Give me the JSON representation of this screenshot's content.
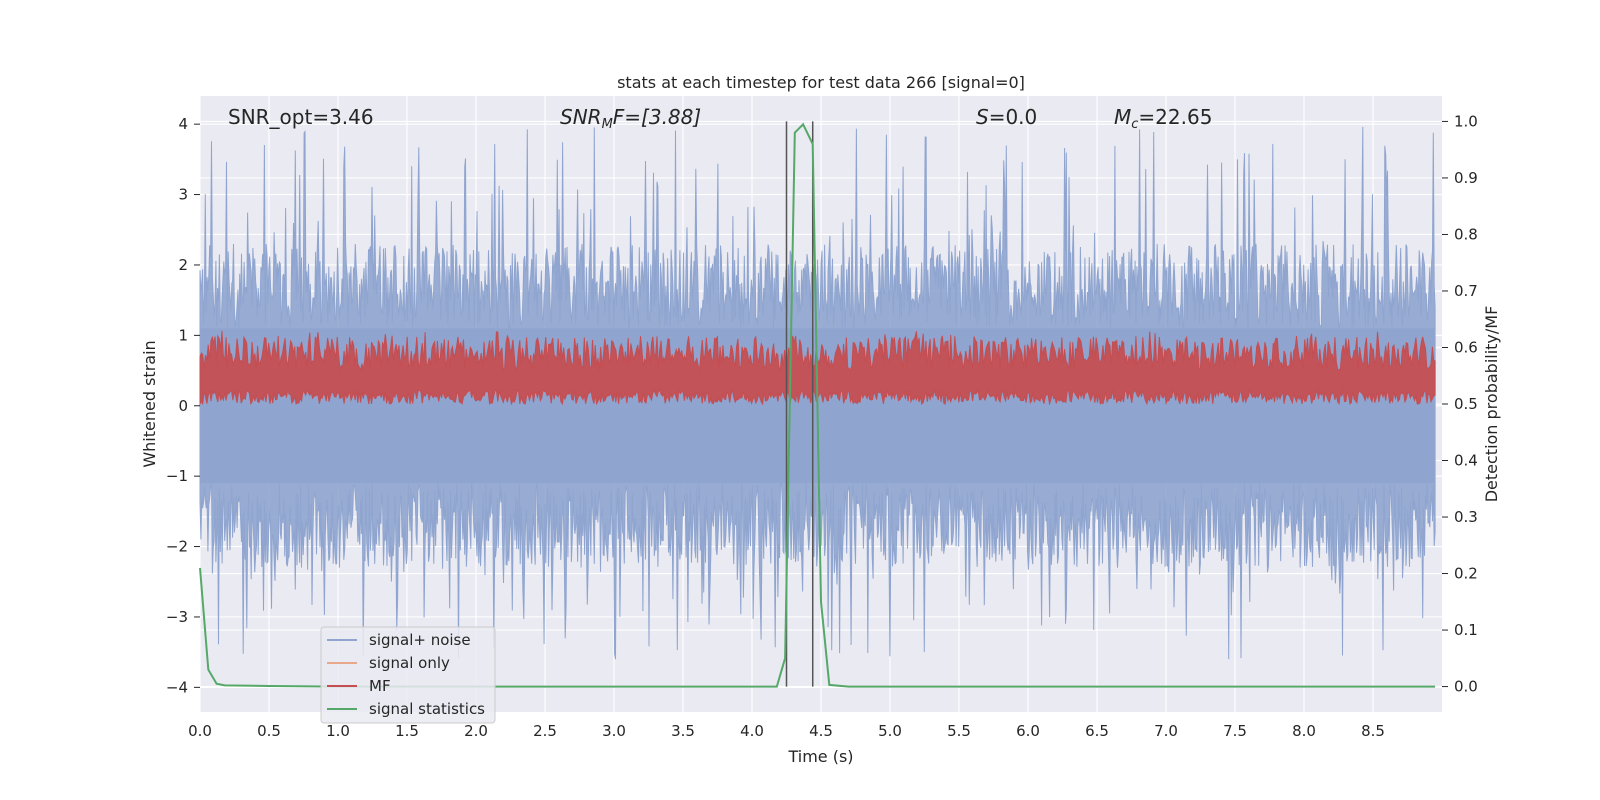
{
  "chart_data": {
    "type": "line",
    "title": "stats at each timestep for test data 266 [signal=0]",
    "xlabel": "Time (s)",
    "ylabel_left": "Whitened strain",
    "ylabel_right": "Detection probability/MF",
    "xlim": [
      0.0,
      9.0
    ],
    "ylim_left": [
      -4.35,
      4.4
    ],
    "ylim_right": [
      -0.045,
      1.045
    ],
    "x_ticks": [
      "0.0",
      "0.5",
      "1.0",
      "1.5",
      "2.0",
      "2.5",
      "3.0",
      "3.5",
      "4.0",
      "4.5",
      "5.0",
      "5.5",
      "6.0",
      "6.5",
      "7.0",
      "7.5",
      "8.0",
      "8.5"
    ],
    "x_tick_values": [
      0.0,
      0.5,
      1.0,
      1.5,
      2.0,
      2.5,
      3.0,
      3.5,
      4.0,
      4.5,
      5.0,
      5.5,
      6.0,
      6.5,
      7.0,
      7.5,
      8.0,
      8.5
    ],
    "y_left_ticks": [
      "4",
      "3",
      "2",
      "1",
      "0",
      "−1",
      "−2",
      "−3",
      "−4"
    ],
    "y_left_tick_values": [
      4,
      3,
      2,
      1,
      0,
      -1,
      -2,
      -3,
      -4
    ],
    "y_right_ticks": [
      "1.0",
      "0.9",
      "0.8",
      "0.7",
      "0.6",
      "0.5",
      "0.4",
      "0.3",
      "0.2",
      "0.1",
      "0.0"
    ],
    "y_right_tick_values": [
      1.0,
      0.9,
      0.8,
      0.7,
      0.6,
      0.5,
      0.4,
      0.3,
      0.2,
      0.1,
      0.0
    ],
    "grid": true,
    "legend_placement": "lower-left",
    "annotations": {
      "snr_opt": "SNR_opt=3.46",
      "snr_mf_base": "SNR",
      "snr_mf_sub": "M",
      "snr_mf_rest": "F=[3.88]",
      "s_var": "S",
      "s_rest": "=0.0",
      "mc_base": "M",
      "mc_sub": "c",
      "mc_rest": "=22.65"
    },
    "vertical_lines_x": [
      4.25,
      4.44
    ],
    "series": [
      {
        "name": "signal+ noise",
        "color": "#8fa5cf",
        "axis": "left",
        "description_range": [
          -3.6,
          4.0
        ]
      },
      {
        "name": "signal only",
        "color": "#e8a88c",
        "axis": "left"
      },
      {
        "name": "MF",
        "color": "#c44e52",
        "axis": "right",
        "band": [
          0.5,
          0.6
        ]
      },
      {
        "name": "signal statistics",
        "color": "#55a868",
        "axis": "right",
        "x": [
          0.0,
          0.06,
          0.12,
          0.18,
          0.5,
          1.0,
          2.0,
          3.0,
          4.0,
          4.18,
          4.24,
          4.31,
          4.37,
          4.44,
          4.5,
          4.56,
          4.7,
          5.0,
          6.0,
          7.0,
          8.0,
          8.95
        ],
        "y": [
          0.21,
          0.03,
          0.005,
          0.002,
          0.001,
          0.0,
          0.0,
          0.0,
          0.0,
          0.0,
          0.05,
          0.98,
          0.995,
          0.96,
          0.15,
          0.003,
          0.0,
          0.0,
          0.0,
          0.0,
          0.0,
          0.0
        ]
      }
    ]
  }
}
